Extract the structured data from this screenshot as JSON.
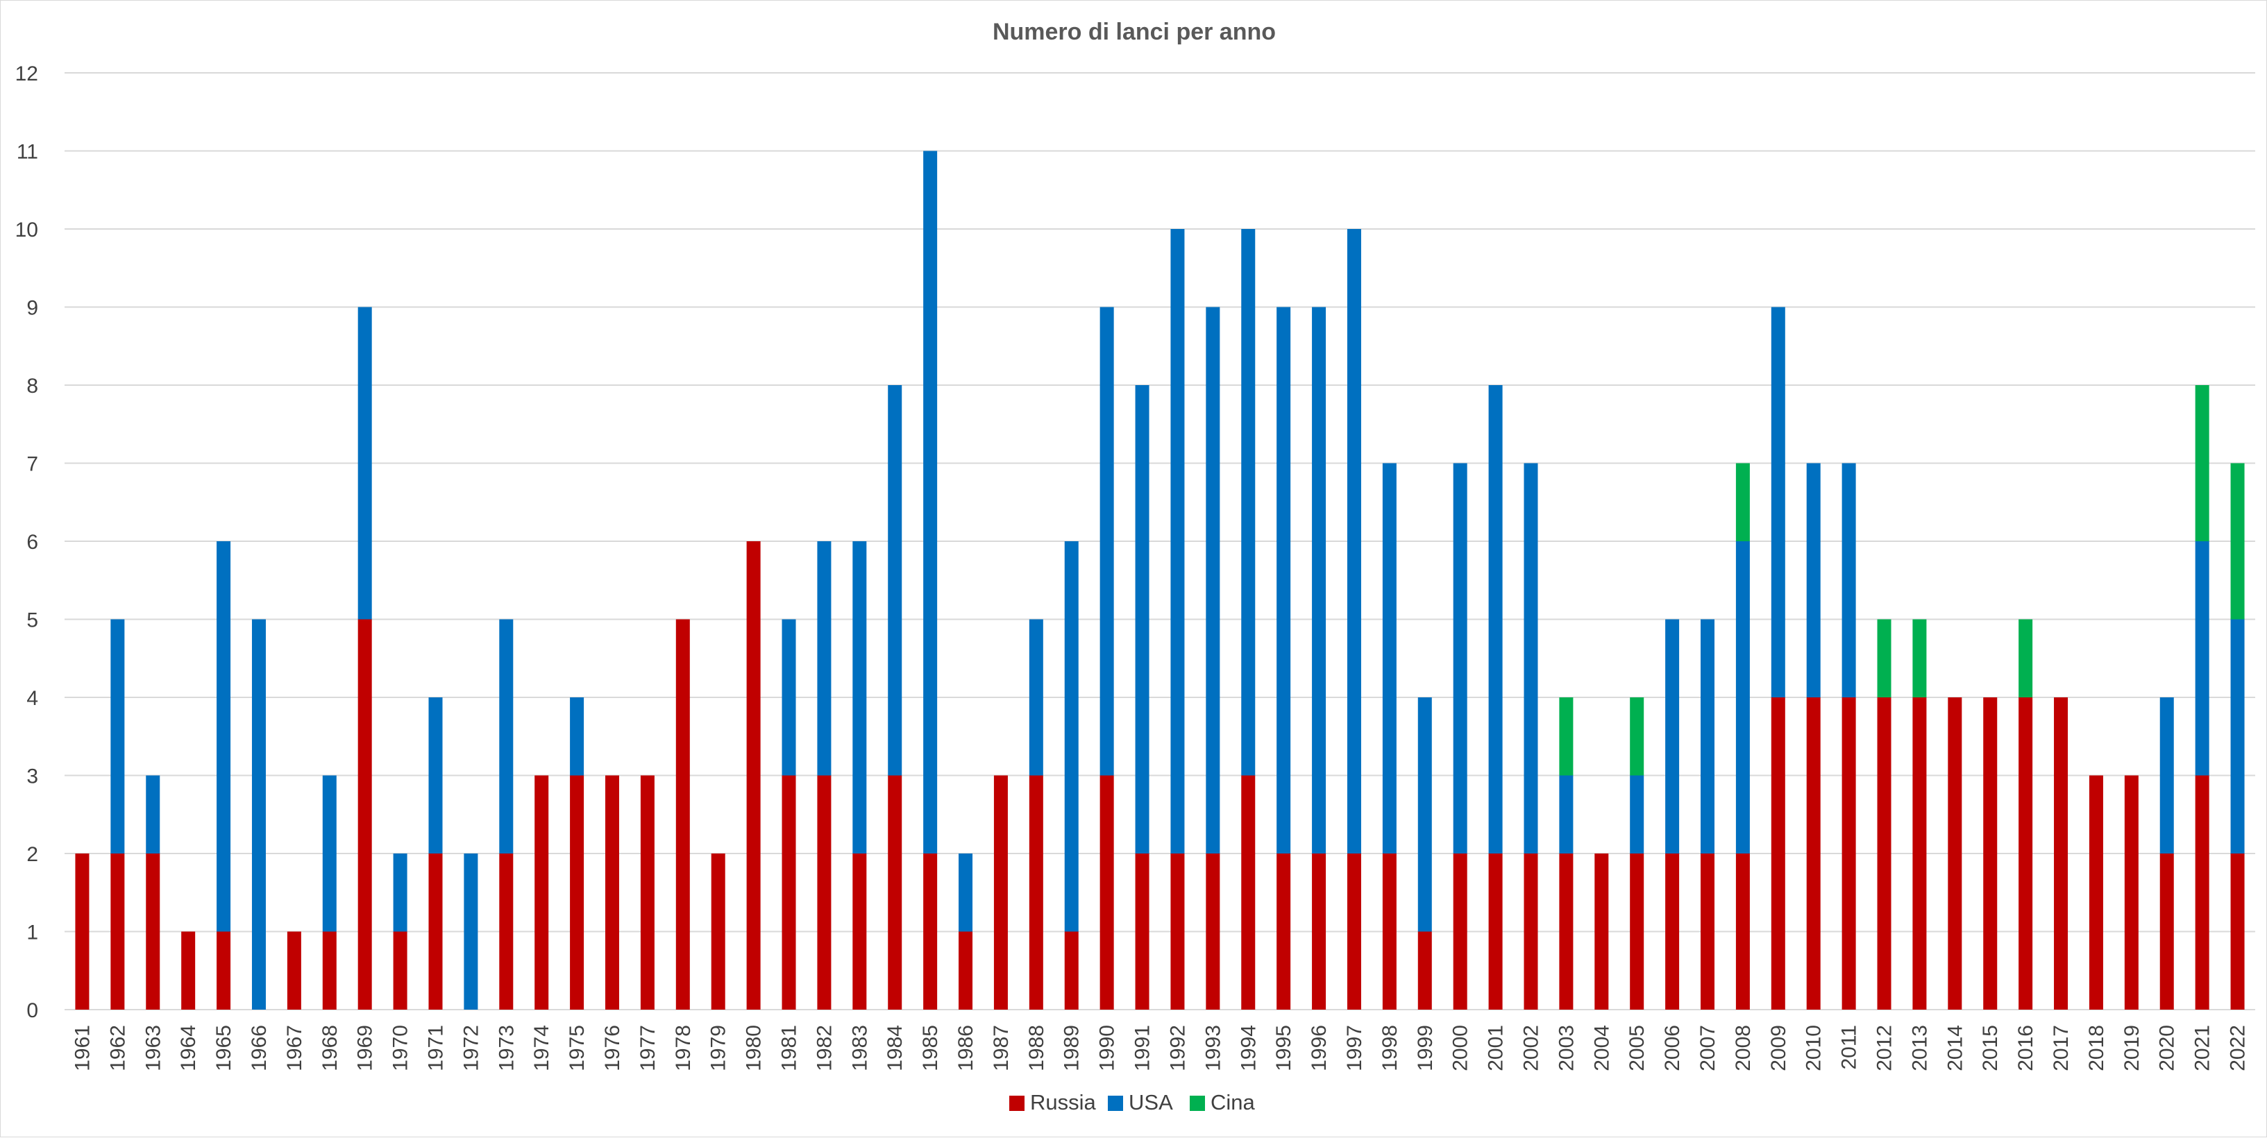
{
  "chart_data": {
    "type": "bar",
    "stacked": true,
    "title": "Numero di lanci per anno",
    "xlabel": "",
    "ylabel": "",
    "ylim": [
      0,
      12
    ],
    "y_ticks": [
      0,
      1,
      2,
      3,
      4,
      5,
      6,
      7,
      8,
      9,
      10,
      11,
      12
    ],
    "grid": true,
    "legend": "bottom-center",
    "categories": [
      "1961",
      "1962",
      "1963",
      "1964",
      "1965",
      "1966",
      "1967",
      "1968",
      "1969",
      "1970",
      "1971",
      "1972",
      "1973",
      "1974",
      "1975",
      "1976",
      "1977",
      "1978",
      "1979",
      "1980",
      "1981",
      "1982",
      "1983",
      "1984",
      "1985",
      "1986",
      "1987",
      "1988",
      "1989",
      "1990",
      "1991",
      "1992",
      "1993",
      "1994",
      "1995",
      "1996",
      "1997",
      "1998",
      "1999",
      "2000",
      "2001",
      "2002",
      "2003",
      "2004",
      "2005",
      "2006",
      "2007",
      "2008",
      "2009",
      "2010",
      "2011",
      "2012",
      "2013",
      "2014",
      "2015",
      "2016",
      "2017",
      "2018",
      "2019",
      "2020",
      "2021",
      "2022"
    ],
    "series": [
      {
        "name": "Russia",
        "color": "#c00000",
        "values": [
          2,
          2,
          2,
          1,
          1,
          0,
          1,
          1,
          5,
          1,
          2,
          0,
          2,
          3,
          3,
          3,
          3,
          5,
          2,
          6,
          3,
          3,
          2,
          3,
          2,
          1,
          3,
          3,
          1,
          3,
          2,
          2,
          2,
          3,
          2,
          2,
          2,
          2,
          1,
          2,
          2,
          2,
          2,
          2,
          2,
          2,
          2,
          2,
          4,
          4,
          4,
          4,
          4,
          4,
          4,
          4,
          4,
          3,
          3,
          2,
          3,
          2
        ]
      },
      {
        "name": "USA",
        "color": "#0070c0",
        "values": [
          0,
          3,
          1,
          0,
          5,
          5,
          0,
          2,
          4,
          1,
          2,
          2,
          3,
          0,
          1,
          0,
          0,
          0,
          0,
          0,
          2,
          3,
          4,
          5,
          9,
          1,
          0,
          2,
          5,
          6,
          6,
          8,
          7,
          7,
          7,
          7,
          8,
          5,
          3,
          5,
          6,
          5,
          1,
          0,
          1,
          3,
          3,
          4,
          5,
          3,
          3,
          0,
          0,
          0,
          0,
          0,
          0,
          0,
          0,
          2,
          3,
          3
        ]
      },
      {
        "name": "Cina",
        "color": "#00b050",
        "values": [
          0,
          0,
          0,
          0,
          0,
          0,
          0,
          0,
          0,
          0,
          0,
          0,
          0,
          0,
          0,
          0,
          0,
          0,
          0,
          0,
          0,
          0,
          0,
          0,
          0,
          0,
          0,
          0,
          0,
          0,
          0,
          0,
          0,
          0,
          0,
          0,
          0,
          0,
          0,
          0,
          0,
          0,
          1,
          0,
          1,
          0,
          0,
          1,
          0,
          0,
          0,
          1,
          1,
          0,
          0,
          1,
          0,
          0,
          0,
          0,
          2,
          2
        ]
      }
    ]
  }
}
